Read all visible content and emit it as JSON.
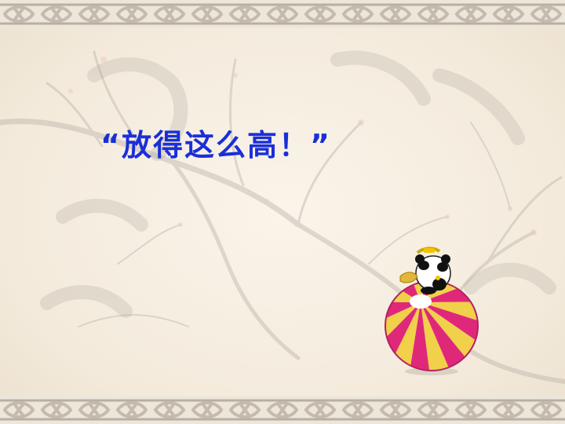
{
  "slide": {
    "title_text": "“放得这么高！”",
    "colors": {
      "title": "#1a2fd8",
      "background": "#f6efe2",
      "border_line": "#b9b0a2",
      "ball_pink": "#e0287a",
      "ball_yellow": "#f1d04a"
    }
  },
  "decorations": {
    "top_border": "decorative-knot-border",
    "bottom_border": "decorative-knot-border",
    "background": "plum-blossom-branch-ink-painting",
    "mascot": "panda-on-striped-ball"
  }
}
